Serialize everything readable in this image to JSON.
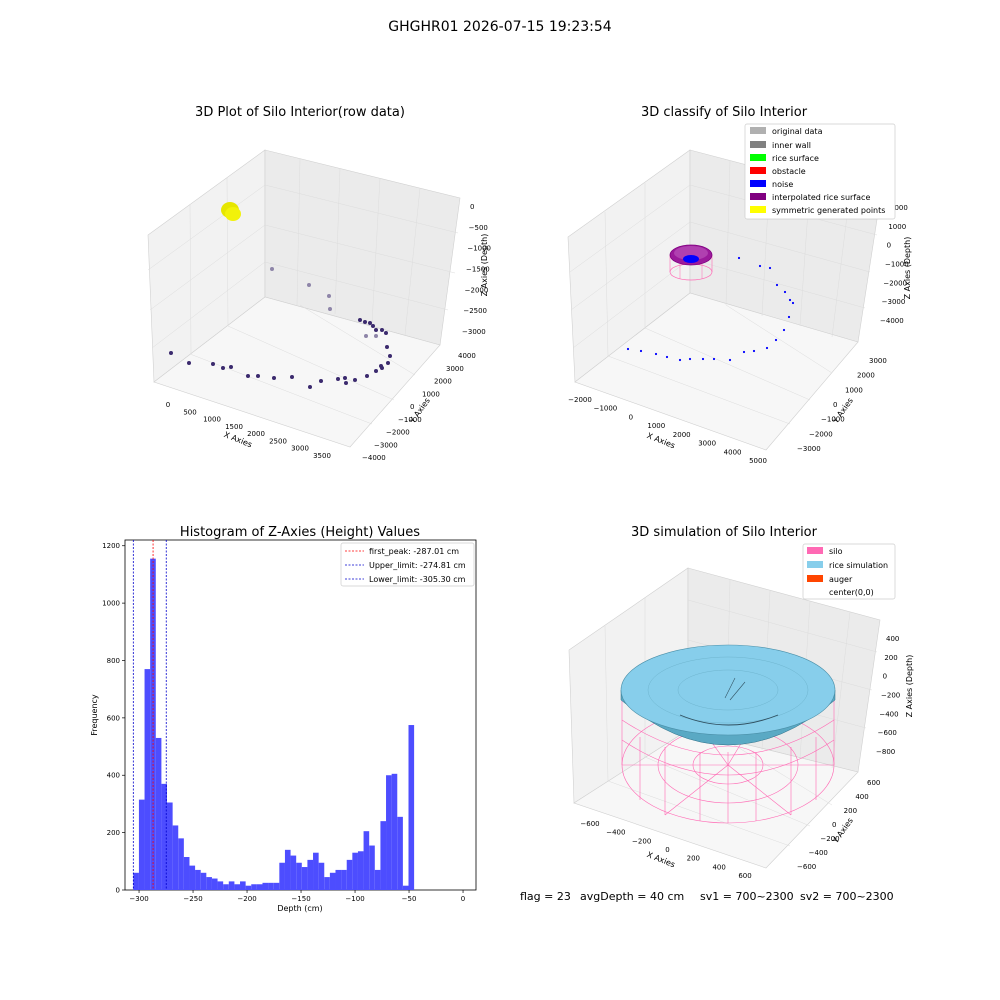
{
  "figure": {
    "suptitle": "GHGHR01 2026-07-15 19:23:54",
    "footer": {
      "flag": "flag = 23",
      "avg_depth": "avgDepth = 40 cm",
      "sv1": "sv1 = 700~2300",
      "sv2": "sv2 = 700~2300"
    }
  },
  "colors": {
    "original": "#b0b0b0",
    "inner_wall": "#808080",
    "rice_surface": "#00ff00",
    "obstacle": "#ff0000",
    "noise": "#0000ff",
    "interpolated": "#800080",
    "symmetric": "#ffff00",
    "hist_bar": "#4d4dff",
    "peak_line": "#ff0000",
    "limit_line": "#0000cc",
    "silo": "#ff69b4",
    "rice_sim": "#87ceeb",
    "auger": "#ff4500",
    "scatter_point": "#3b2a6e"
  },
  "chart_data": [
    {
      "type": "scatter",
      "title": "3D Plot of Silo Interior(row data)",
      "xlabel": "X Axies",
      "ylabel": "Y Axies",
      "zlabel": "Z Axies (Depth)",
      "x_ticks": [
        "0",
        "500",
        "1000",
        "1500",
        "2000",
        "2500",
        "3000",
        "3500"
      ],
      "y_ticks": [
        "4000",
        "3000",
        "2000",
        "1000",
        "0",
        "−1000",
        "−2000",
        "−3000",
        "−4000"
      ],
      "z_ticks": [
        "0",
        "−500",
        "−1000",
        "−1500",
        "−2000",
        "−2500",
        "−3000"
      ],
      "projection": "3d",
      "grid": true
    },
    {
      "type": "scatter",
      "title": "3D classify of Silo Interior",
      "xlabel": "X Axies",
      "ylabel": "Y Axies",
      "zlabel": "Z Axies (Depth)",
      "x_ticks": [
        "−2000",
        "−1000",
        "0",
        "1000",
        "2000",
        "3000",
        "4000",
        "5000"
      ],
      "y_ticks": [
        "3000",
        "2000",
        "1000",
        "0",
        "−1000",
        "−2000",
        "−3000"
      ],
      "z_ticks": [
        "2000",
        "1000",
        "0",
        "−1000",
        "−2000",
        "−3000",
        "−4000"
      ],
      "legend": {
        "placement": "top-right",
        "entries": [
          "original data",
          "inner wall",
          "rice surface",
          "obstacle",
          "noise",
          "interpolated rice surface",
          "symmetric generated points"
        ]
      },
      "projection": "3d",
      "grid": true
    },
    {
      "type": "bar",
      "title": "Histogram of Z-Axies (Height) Values",
      "xlabel": "Depth (cm)",
      "ylabel": "Frequency",
      "xlim": [
        -313,
        12
      ],
      "ylim": [
        0,
        1220
      ],
      "x_ticks": [
        -300,
        -250,
        -200,
        -150,
        -100,
        -50,
        0
      ],
      "y_ticks": [
        0,
        200,
        400,
        600,
        800,
        1000,
        1200
      ],
      "bin_start": -305.3,
      "bin_width": 5.2,
      "values": [
        60,
        315,
        770,
        1155,
        530,
        370,
        305,
        225,
        180,
        115,
        85,
        70,
        60,
        45,
        40,
        30,
        20,
        30,
        20,
        30,
        15,
        20,
        20,
        25,
        25,
        25,
        95,
        140,
        120,
        95,
        80,
        105,
        130,
        95,
        45,
        60,
        70,
        70,
        105,
        130,
        135,
        205,
        155,
        70,
        240,
        400,
        405,
        255,
        15,
        575
      ],
      "lines": [
        {
          "name": "first_peak: -287.01 cm",
          "x": -287.01,
          "style": "dashed",
          "color": "red"
        },
        {
          "name": "Upper_limit: -274.81 cm",
          "x": -274.81,
          "style": "dashed",
          "color": "blue"
        },
        {
          "name": "Lower_limit: -305.30 cm",
          "x": -305.3,
          "style": "dashed",
          "color": "blue"
        }
      ],
      "legend": {
        "placement": "top-right"
      },
      "grid": false
    },
    {
      "type": "area",
      "title": "3D simulation of Silo Interior",
      "xlabel": "X Axies",
      "ylabel": "Y Axies",
      "zlabel": "Z Axies (Depth)",
      "x_ticks": [
        "−600",
        "−400",
        "−200",
        "0",
        "200",
        "400",
        "600"
      ],
      "y_ticks": [
        "600",
        "400",
        "200",
        "0",
        "−200",
        "−400",
        "−600"
      ],
      "z_ticks": [
        "400",
        "200",
        "0",
        "−200",
        "−400",
        "−600",
        "−800"
      ],
      "legend": {
        "placement": "top-right",
        "entries": [
          "silo",
          "rice simulation",
          "auger",
          "center(0,0)"
        ]
      },
      "projection": "3d",
      "grid": true
    }
  ]
}
